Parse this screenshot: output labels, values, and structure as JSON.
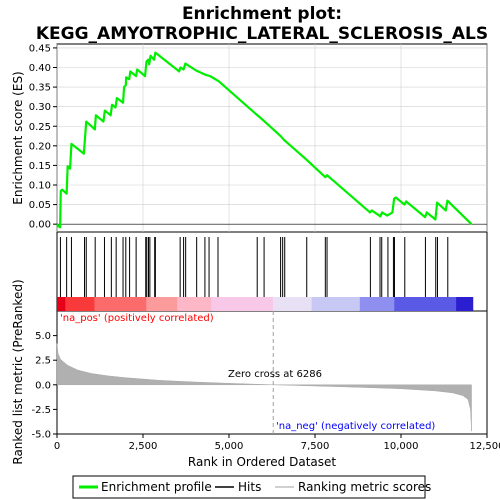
{
  "chart_data": {
    "type": "line",
    "title": "Enrichment plot:\nKEGG_AMYOTROPHIC_LATERAL_SCLEROSIS_ALS",
    "title_lines": [
      "Enrichment plot:",
      "KEGG_AMYOTROPHIC_LATERAL_SCLEROSIS_ALS"
    ],
    "xlabel": "Rank in Ordered Dataset",
    "xlim": [
      0,
      12500
    ],
    "x_ticks": [
      0,
      2500,
      5000,
      7500,
      10000,
      12500
    ],
    "x_tick_labels": [
      "0",
      "2,500",
      "5,000",
      "7,500",
      "10,000",
      "12,500"
    ],
    "es_panel": {
      "ylabel": "Enrichment score (ES)",
      "ylim": [
        -0.02,
        0.46
      ],
      "y_ticks": [
        0.0,
        0.05,
        0.1,
        0.15,
        0.2,
        0.25,
        0.3,
        0.35,
        0.4,
        0.45
      ],
      "y_tick_labels": [
        "0.00",
        "0.05",
        "0.10",
        "0.15",
        "0.20",
        "0.25",
        "0.30",
        "0.35",
        "0.40",
        "0.45"
      ],
      "series_name": "Enrichment profile",
      "color": "#00ee00",
      "points": [
        [
          0,
          0
        ],
        [
          40,
          -0.005
        ],
        [
          90,
          -0.008
        ],
        [
          110,
          0.085
        ],
        [
          150,
          0.088
        ],
        [
          280,
          0.078
        ],
        [
          310,
          0.148
        ],
        [
          380,
          0.142
        ],
        [
          420,
          0.205
        ],
        [
          780,
          0.18
        ],
        [
          810,
          0.215
        ],
        [
          850,
          0.262
        ],
        [
          1100,
          0.242
        ],
        [
          1130,
          0.278
        ],
        [
          1350,
          0.262
        ],
        [
          1390,
          0.29
        ],
        [
          1560,
          0.278
        ],
        [
          1600,
          0.305
        ],
        [
          1700,
          0.298
        ],
        [
          1740,
          0.322
        ],
        [
          1920,
          0.31
        ],
        [
          1950,
          0.35
        ],
        [
          2000,
          0.355
        ],
        [
          2010,
          0.375
        ],
        [
          2100,
          0.37
        ],
        [
          2130,
          0.39
        ],
        [
          2300,
          0.378
        ],
        [
          2330,
          0.395
        ],
        [
          2560,
          0.378
        ],
        [
          2600,
          0.415
        ],
        [
          2650,
          0.42
        ],
        [
          2680,
          0.408
        ],
        [
          2720,
          0.43
        ],
        [
          2820,
          0.42
        ],
        [
          2860,
          0.438
        ],
        [
          3550,
          0.39
        ],
        [
          3590,
          0.4
        ],
        [
          3680,
          0.395
        ],
        [
          3730,
          0.41
        ],
        [
          4050,
          0.392
        ],
        [
          4100,
          0.39
        ],
        [
          4300,
          0.382
        ],
        [
          4450,
          0.378
        ],
        [
          4700,
          0.365
        ],
        [
          5800,
          0.28
        ],
        [
          6000,
          0.265
        ],
        [
          6500,
          0.225
        ],
        [
          6600,
          0.215
        ],
        [
          7250,
          0.165
        ],
        [
          7800,
          0.12
        ],
        [
          7850,
          0.125
        ],
        [
          9100,
          0.03
        ],
        [
          9150,
          0.035
        ],
        [
          9400,
          0.02
        ],
        [
          9450,
          0.03
        ],
        [
          9600,
          0.022
        ],
        [
          9750,
          0.03
        ],
        [
          9800,
          0.065
        ],
        [
          9850,
          0.068
        ],
        [
          10100,
          0.05
        ],
        [
          10150,
          0.058
        ],
        [
          10700,
          0.018
        ],
        [
          10750,
          0.03
        ],
        [
          11000,
          0.012
        ],
        [
          11050,
          0.055
        ],
        [
          11300,
          0.035
        ],
        [
          11350,
          0.06
        ],
        [
          12050,
          0
        ]
      ]
    },
    "hits": [
      100,
      280,
      420,
      800,
      850,
      1110,
      1380,
      1580,
      1720,
      1920,
      2000,
      2110,
      2300,
      2580,
      2610,
      2660,
      2700,
      2840,
      2860,
      3580,
      3680,
      3740,
      4060,
      4300,
      4420,
      4680,
      5820,
      6020,
      6500,
      6560,
      6620,
      7260,
      7800,
      7850,
      9110,
      9390,
      9440,
      9620,
      9780,
      9810,
      10110,
      10710,
      11010,
      11060,
      11360
    ],
    "ranked_metric_panel": {
      "ylabel": "Ranked list metric (PreRanked)",
      "ylim": [
        -5,
        7.5
      ],
      "y_ticks": [
        -5.0,
        -2.5,
        0.0,
        2.5,
        5.0
      ],
      "y_tick_labels": [
        "-5.0",
        "-2.5",
        "0.0",
        "2.5",
        "5.0"
      ],
      "fill_color": "#b0b0b0",
      "points": [
        [
          0,
          4.2
        ],
        [
          30,
          3.2
        ],
        [
          100,
          2.6
        ],
        [
          300,
          2.0
        ],
        [
          600,
          1.5
        ],
        [
          1000,
          1.15
        ],
        [
          1500,
          0.9
        ],
        [
          2000,
          0.72
        ],
        [
          3000,
          0.45
        ],
        [
          4000,
          0.28
        ],
        [
          5000,
          0.15
        ],
        [
          6286,
          0
        ],
        [
          7000,
          -0.07
        ],
        [
          8000,
          -0.17
        ],
        [
          9000,
          -0.28
        ],
        [
          10000,
          -0.4
        ],
        [
          11000,
          -0.62
        ],
        [
          11500,
          -0.82
        ],
        [
          11800,
          -1.1
        ],
        [
          11950,
          -1.5
        ],
        [
          12020,
          -2.5
        ],
        [
          12050,
          -4.7
        ]
      ],
      "zero_cross_label": "Zero cross at 6286",
      "zero_cross": 6286,
      "pos_label": "'na_pos' (positively correlated)",
      "neg_label": "'na_neg' (negatively correlated)",
      "pos_label_color": "#ff0000",
      "neg_label_color": "#0000ff"
    },
    "colorbar": {
      "segments": [
        {
          "from": 0,
          "to": 250,
          "color": "#e8001a"
        },
        {
          "from": 250,
          "to": 1100,
          "color": "#f83a3a"
        },
        {
          "from": 1100,
          "to": 2600,
          "color": "#fb6b6b"
        },
        {
          "from": 2600,
          "to": 3500,
          "color": "#fc9b9b"
        },
        {
          "from": 3500,
          "to": 4500,
          "color": "#fdb8c8"
        },
        {
          "from": 4500,
          "to": 6286,
          "color": "#f8c8e8"
        },
        {
          "from": 6286,
          "to": 7400,
          "color": "#e8e0f4"
        },
        {
          "from": 7400,
          "to": 8800,
          "color": "#c8c8f4"
        },
        {
          "from": 8800,
          "to": 9800,
          "color": "#8f8ff0"
        },
        {
          "from": 9800,
          "to": 11600,
          "color": "#5a5ae6"
        },
        {
          "from": 11600,
          "to": 12100,
          "color": "#2a1ed0"
        }
      ]
    },
    "legend": {
      "placement": "bottom",
      "entries": [
        {
          "label": "Enrichment profile",
          "color": "#00ee00",
          "kind": "line-thick"
        },
        {
          "label": "Hits",
          "color": "#000000",
          "kind": "line"
        },
        {
          "label": "Ranking metric scores",
          "color": "#c0c0c0",
          "kind": "line"
        }
      ]
    }
  }
}
